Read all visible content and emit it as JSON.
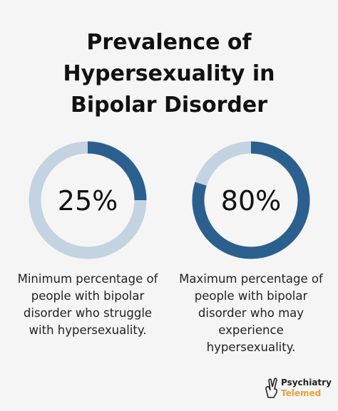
{
  "title": "Prevalence of Hypersexuality in Bipolar Disorder",
  "chart_data": [
    {
      "type": "donut",
      "values": [
        25
      ],
      "value_labels": [
        "25%"
      ],
      "color": "#2b5f8e",
      "track_color": "#c3d3e1",
      "caption": "Minimum percentage of people with bipolar disorder who struggle with hypersexuality."
    },
    {
      "type": "donut",
      "values": [
        80
      ],
      "value_labels": [
        "80%"
      ],
      "color": "#2b5f8e",
      "track_color": "#c3d3e1",
      "caption": "Maximum percentage of people with bipolar disorder who may experience hypersexuality."
    }
  ],
  "brand": {
    "line1": "Psychiatry",
    "line2": "Telemed"
  }
}
